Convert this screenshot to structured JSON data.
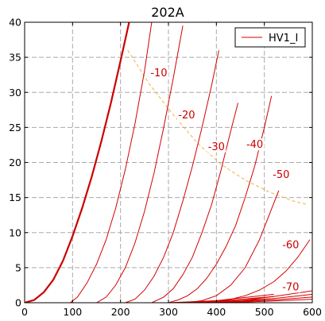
{
  "chart_data": {
    "type": "line",
    "title": "202A",
    "xlabel": "",
    "ylabel": "",
    "xlim": [
      0,
      600
    ],
    "ylim": [
      0,
      40
    ],
    "xticks": [
      0,
      100,
      200,
      300,
      400,
      500,
      600
    ],
    "yticks": [
      0,
      5,
      10,
      15,
      20,
      25,
      30,
      35,
      40
    ],
    "grid": true,
    "legend": {
      "position": "top-right",
      "entries": [
        "HV1_I"
      ]
    },
    "colors": {
      "curve": "#d40000",
      "bold_curve": "#cc0000",
      "load_line": "#f5b041",
      "grid": "#aaaaaa"
    },
    "series": [
      {
        "grid_voltage": "0",
        "bold": true,
        "x": [
          0,
          20,
          40,
          60,
          80,
          100,
          120,
          140,
          160,
          180,
          200,
          218
        ],
        "y": [
          0,
          0.4,
          1.5,
          3.3,
          6,
          9.5,
          13.5,
          18,
          23,
          28.5,
          34.5,
          40
        ]
      },
      {
        "grid_voltage": "-10",
        "x": [
          95,
          110,
          130,
          150,
          170,
          190,
          210,
          230,
          250,
          265
        ],
        "y": [
          0,
          0.8,
          2.8,
          5.5,
          9,
          13.5,
          19,
          25.5,
          33,
          40
        ]
      },
      {
        "grid_voltage": "-20",
        "x": [
          150,
          170,
          190,
          210,
          230,
          250,
          270,
          290,
          310,
          330
        ],
        "y": [
          0,
          0.8,
          2.5,
          5,
          8.5,
          13,
          18.5,
          25,
          32,
          39.5
        ]
      },
      {
        "grid_voltage": "-30",
        "x": [
          210,
          230,
          250,
          270,
          290,
          310,
          330,
          350,
          370,
          390,
          405
        ],
        "y": [
          0,
          0.5,
          1.8,
          3.8,
          6.5,
          10,
          14.5,
          19.5,
          25,
          31,
          36
        ]
      },
      {
        "grid_voltage": "-40",
        "x": [
          265,
          290,
          310,
          330,
          350,
          370,
          390,
          410,
          430,
          445
        ],
        "y": [
          0,
          0.8,
          2,
          4,
          6.5,
          10,
          14,
          19,
          24.5,
          28.5
        ]
      },
      {
        "grid_voltage": "-50",
        "x": [
          300,
          320,
          340,
          360,
          380,
          400,
          420,
          440,
          460,
          480,
          500,
          515
        ],
        "y": [
          0,
          0.4,
          1,
          2,
          3.5,
          5.5,
          8,
          11,
          15,
          19.5,
          25,
          29.5
        ]
      },
      {
        "grid_voltage": "-60",
        "x": [
          340,
          370,
          400,
          430,
          460,
          490,
          510,
          530
        ],
        "y": [
          0,
          0.3,
          1,
          2.5,
          5,
          9,
          12.5,
          16
        ]
      },
      {
        "grid_voltage": "-70",
        "x": [
          370,
          400,
          430,
          460,
          490,
          520,
          545,
          570,
          595
        ],
        "y": [
          0,
          0.2,
          0.5,
          1,
          1.8,
          3,
          4.5,
          6.5,
          9
        ]
      },
      {
        "grid_voltage": "",
        "x": [
          380,
          450,
          520,
          600
        ],
        "y": [
          0,
          0.3,
          0.9,
          1.7
        ]
      },
      {
        "grid_voltage": "",
        "x": [
          390,
          450,
          520,
          600
        ],
        "y": [
          0,
          0.2,
          0.6,
          1.2
        ]
      },
      {
        "grid_voltage": "",
        "x": [
          400,
          450,
          520,
          600
        ],
        "y": [
          0,
          0.15,
          0.4,
          0.8
        ]
      },
      {
        "grid_voltage": "",
        "x": [
          410,
          460,
          520,
          600
        ],
        "y": [
          0,
          0.1,
          0.25,
          0.5
        ]
      },
      {
        "grid_voltage": "",
        "x": [
          300,
          400,
          520
        ],
        "y": [
          0,
          0.3,
          1.2
        ]
      },
      {
        "grid_voltage": "",
        "x": [
          310,
          400,
          520
        ],
        "y": [
          0,
          0.2,
          0.9
        ]
      },
      {
        "grid_voltage": "",
        "x": [
          320,
          400,
          520
        ],
        "y": [
          0,
          0.15,
          0.6
        ]
      }
    ],
    "load_line": {
      "x": [
        215,
        260,
        310,
        360,
        410,
        460,
        510,
        560,
        590
      ],
      "y": [
        36,
        31.2,
        26.8,
        22.8,
        19.7,
        17.5,
        15.8,
        14.5,
        14
      ]
    },
    "curve_labels": [
      {
        "text": "-10",
        "x": 280,
        "y": 32.5
      },
      {
        "text": "-20",
        "x": 338,
        "y": 26.5
      },
      {
        "text": "-30",
        "x": 400,
        "y": 22
      },
      {
        "text": "-40",
        "x": 480,
        "y": 22.3
      },
      {
        "text": "-50",
        "x": 535,
        "y": 18
      },
      {
        "text": "-60",
        "x": 555,
        "y": 8
      },
      {
        "text": "-70",
        "x": 555,
        "y": 2
      }
    ]
  }
}
